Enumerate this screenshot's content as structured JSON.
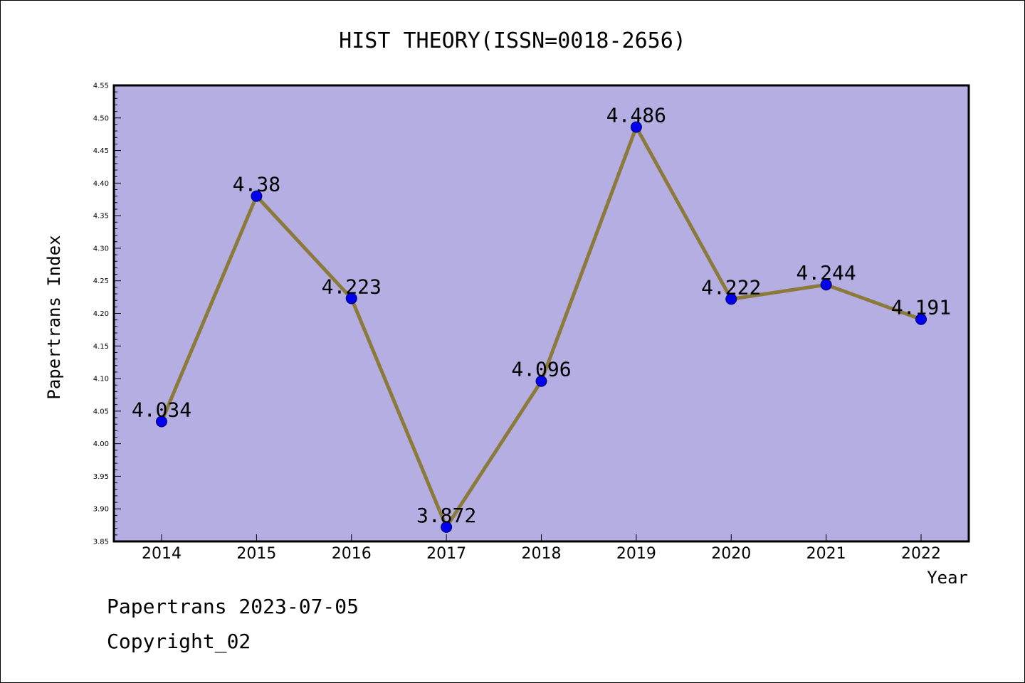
{
  "chart_data": {
    "type": "line",
    "title": "HIST THEORY(ISSN=0018-2656)",
    "xlabel": "Year",
    "ylabel": "Papertrans Index",
    "categories": [
      "2014",
      "2015",
      "2016",
      "2017",
      "2018",
      "2019",
      "2020",
      "2021",
      "2022"
    ],
    "series": [
      {
        "values": [
          4.034,
          4.38,
          4.223,
          3.872,
          4.096,
          4.486,
          4.222,
          4.244,
          4.191
        ],
        "labels": [
          "4.034",
          "4.38",
          "4.223",
          "3.872",
          "4.096",
          "4.486",
          "4.222",
          "4.244",
          "4.191"
        ]
      }
    ],
    "ylim": [
      3.85,
      4.55
    ],
    "yticks": [
      "3.85",
      "3.90",
      "3.95",
      "4.00",
      "4.05",
      "4.10",
      "4.15",
      "4.20",
      "4.25",
      "4.30",
      "4.35",
      "4.40",
      "4.45",
      "4.50",
      "4.55"
    ],
    "grid": false,
    "colors": {
      "plot_background": "#b4aee2",
      "line": "#8b7a3a",
      "marker": "#0000ee",
      "marker_edge": "#000066"
    }
  },
  "footer": {
    "date_text": "Papertrans 2023-07-05",
    "copyright_text": "Copyright_02"
  }
}
